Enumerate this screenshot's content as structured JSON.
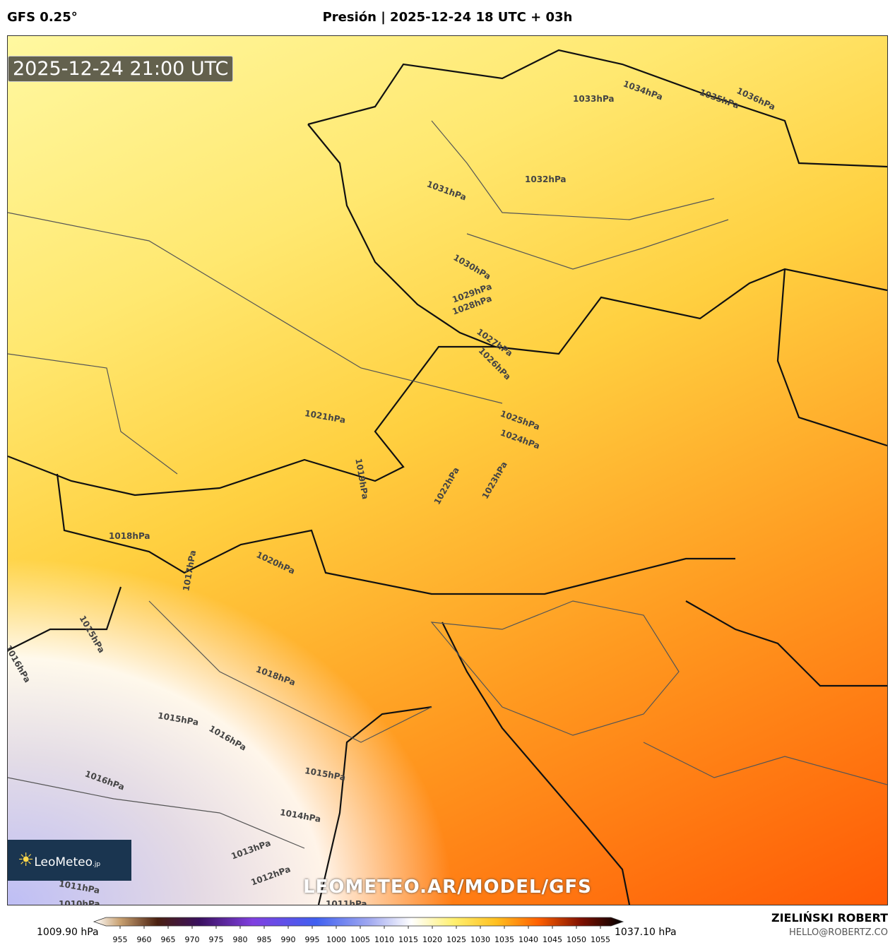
{
  "header": {
    "model": "GFS 0.25°",
    "title": "Presión | 2025-12-24 18 UTC + 03h"
  },
  "map": {
    "timestamp": "2025-12-24 21:00 UTC",
    "logo": "LeoMeteo",
    "logo_suffix": ".jp",
    "watermark": "LEOMETEO.AR/MODEL/GFS",
    "isobar_labels": [
      "1033hPa",
      "1034hPa",
      "1035hPa",
      "1036hPa",
      "1032hPa",
      "1031hPa",
      "1030hPa",
      "1029hPa",
      "1028hPa",
      "1027hPa",
      "1026hPa",
      "1025hPa",
      "1024hPa",
      "1023hPa",
      "1022hPa",
      "1021hPa",
      "1019hPa",
      "1018hPa",
      "1020hPa",
      "1017hPa",
      "1015hPa",
      "1016hPa",
      "1018hPa",
      "1015hPa",
      "1016hPa",
      "1015hPa",
      "1016hPa",
      "1014hPa",
      "1013hPa",
      "1012hPa",
      "1011hPa",
      "1010hPa",
      "1011hPa"
    ]
  },
  "colorbar": {
    "min_label": "1009.90 hPa",
    "max_label": "1037.10 hPa",
    "lim": [
      955,
      1055
    ],
    "ticks": [
      955,
      960,
      965,
      970,
      975,
      980,
      985,
      990,
      995,
      1000,
      1005,
      1010,
      1015,
      1020,
      1025,
      1030,
      1035,
      1040,
      1045,
      1050,
      1055
    ]
  },
  "footer": {
    "author": "ZIELIŃSKI ROBERT",
    "email": "HELLO@ROBERTZ.CO"
  }
}
